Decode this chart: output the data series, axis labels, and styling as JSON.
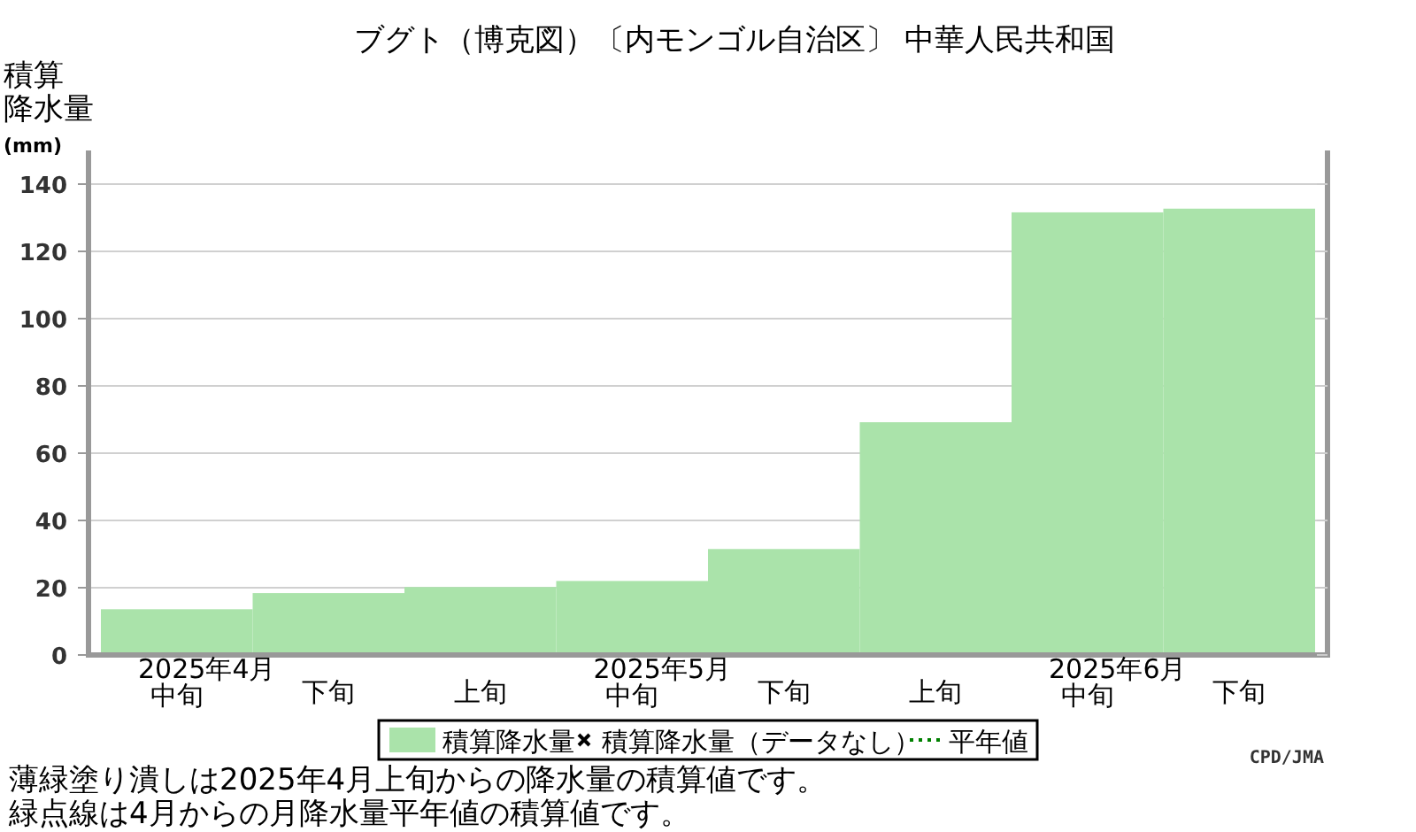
{
  "chart_data": {
    "type": "bar",
    "title": "ブグト（博克図）〔内モンゴル自治区〕 中華人民共和国",
    "ylabel": "積算降水量(mm)",
    "categories": [
      "2025年4月中旬",
      "下旬",
      "上旬",
      "2025年5月中旬",
      "下旬",
      "上旬",
      "2025年6月中旬",
      "下旬"
    ],
    "series": [
      {
        "name": "積算降水量",
        "color": "#aae3aa",
        "values": [
          13.6,
          18.4,
          20.2,
          22,
          31.5,
          69.2,
          131.6,
          132.7
        ]
      },
      {
        "name": "積算降水量（データなし）",
        "type": "scatter",
        "marker": "cross",
        "color": "#000000",
        "values": [
          null,
          null,
          null,
          null,
          null,
          null,
          null,
          null
        ]
      },
      {
        "name": "平年値",
        "type": "line",
        "line_style": "dotted",
        "color": "#008000",
        "values": [
          null,
          null,
          null,
          null,
          null,
          null,
          null,
          null
        ]
      }
    ],
    "ylim": [
      0,
      150
    ],
    "yticks": [
      0,
      20,
      40,
      60,
      80,
      100,
      120,
      140
    ],
    "grid": "y",
    "legend": "bottom",
    "annotations": [
      "薄緑塗り潰しは2025年4月上旬からの降水量の積算値です。",
      "緑点線は4月からの月降水量平年値の積算値です。",
      "CPD/JMA"
    ]
  }
}
